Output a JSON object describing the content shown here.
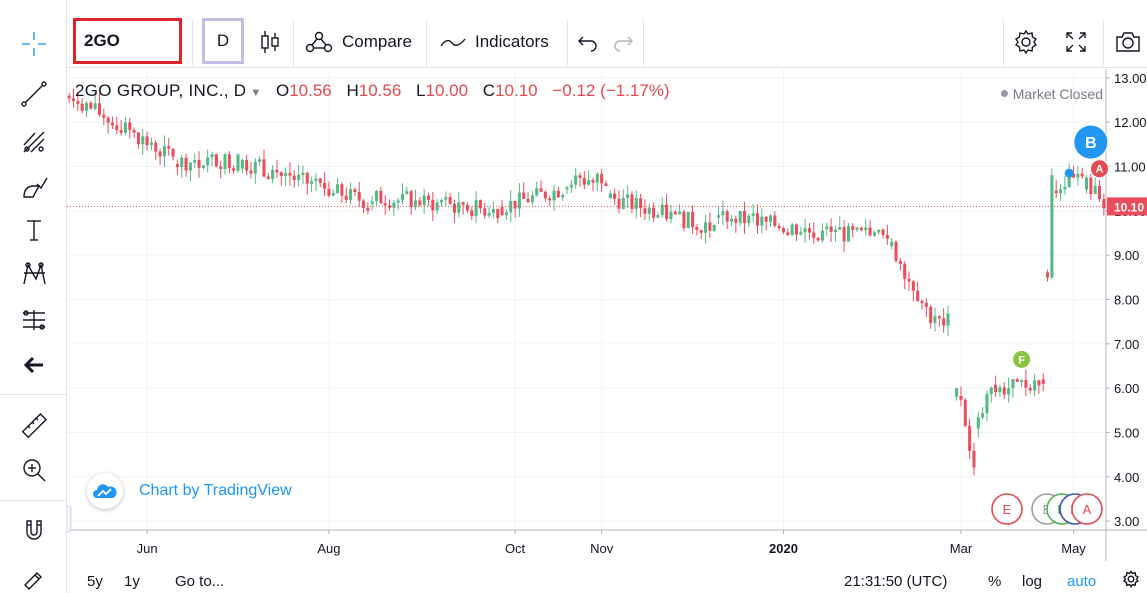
{
  "toolbar": {
    "symbol": "2GO",
    "interval": "D",
    "compare_label": "Compare",
    "indicators_label": "Indicators"
  },
  "legend": {
    "name": "2GO GROUP, INC., D",
    "o_label": "O",
    "o_value": "10.56",
    "h_label": "H",
    "h_value": "10.56",
    "l_label": "L",
    "l_value": "10.00",
    "c_label": "C",
    "c_value": "10.10",
    "change": "−0.12 (−1.17%)"
  },
  "market_status": "Market Closed",
  "watermark": "Chart by TradingView",
  "bottom": {
    "range_5y": "5y",
    "range_1y": "1y",
    "goto": "Go to...",
    "time": "21:31:50 (UTC)",
    "percent": "%",
    "log": "log",
    "auto": "auto"
  },
  "colors": {
    "up": "#53b987",
    "down": "#eb4d5c",
    "accent": "#2196f3",
    "symbol_border": "#d9242c",
    "interval_border": "#c3bde6"
  },
  "chart_data": {
    "type": "candlestick",
    "ylim": [
      2.8,
      13.2
    ],
    "y_ticks": [
      "13.00",
      "12.00",
      "11.00",
      "10.00",
      "9.00",
      "8.00",
      "7.00",
      "6.00",
      "5.00",
      "4.00",
      "3.00"
    ],
    "x_ticks": [
      {
        "label": "Jun",
        "index": 18,
        "bold": false
      },
      {
        "label": "Aug",
        "index": 60,
        "bold": false
      },
      {
        "label": "Oct",
        "index": 103,
        "bold": false
      },
      {
        "label": "Nov",
        "index": 123,
        "bold": false
      },
      {
        "label": "2020",
        "index": 165,
        "bold": true
      },
      {
        "label": "Mar",
        "index": 206,
        "bold": false
      },
      {
        "label": "May",
        "index": 232,
        "bold": false
      }
    ],
    "last_price": "10.10",
    "last_value": 10.1,
    "segments": [
      {
        "from": 0,
        "to": 25,
        "start": 12.6,
        "end": 11.2
      },
      {
        "from": 25,
        "to": 40,
        "start": 11.1,
        "end": 11.15
      },
      {
        "from": 40,
        "to": 70,
        "start": 11.1,
        "end": 10.2
      },
      {
        "from": 70,
        "to": 100,
        "start": 10.3,
        "end": 10.0
      },
      {
        "from": 100,
        "to": 115,
        "start": 10.1,
        "end": 10.5
      },
      {
        "from": 115,
        "to": 125,
        "start": 10.6,
        "end": 10.8
      },
      {
        "from": 125,
        "to": 150,
        "start": 10.3,
        "end": 9.6
      },
      {
        "from": 150,
        "to": 175,
        "start": 9.9,
        "end": 9.5
      },
      {
        "from": 175,
        "to": 190,
        "start": 9.5,
        "end": 9.4
      },
      {
        "from": 190,
        "to": 200,
        "start": 9.2,
        "end": 7.6
      },
      {
        "from": 200,
        "to": 204,
        "start": 7.5,
        "end": 7.5
      },
      {
        "from": 205,
        "to": 206,
        "start": 5.9,
        "end": 5.9
      },
      {
        "from": 206,
        "to": 210,
        "start": 5.8,
        "end": 4.1
      },
      {
        "from": 210,
        "to": 214,
        "start": 5.2,
        "end": 6.0
      },
      {
        "from": 214,
        "to": 225,
        "start": 5.95,
        "end": 6.15
      },
      {
        "from": 225,
        "to": 226,
        "start": 6.2,
        "end": 6.2
      },
      {
        "from": 226,
        "to": 228,
        "start": 8.6,
        "end": 10.9
      },
      {
        "from": 228,
        "to": 235,
        "start": 10.6,
        "end": 10.7
      },
      {
        "from": 235,
        "to": 240,
        "start": 10.6,
        "end": 10.2
      }
    ],
    "events": [
      {
        "letter": "F",
        "index": 220,
        "y": 6.65,
        "color": "#89c541",
        "text_color": "#ffffff"
      },
      {
        "letter": "B",
        "index": 236,
        "y": 11.55,
        "color": "#2196f3",
        "text_color": "#ffffff",
        "big": true
      },
      {
        "letter": "A",
        "index": 238,
        "y": 10.95,
        "color": "#e24a50",
        "text_color": "#ffffff"
      }
    ],
    "bottom_events": [
      {
        "letter": "E",
        "color": "#e24a50"
      },
      {
        "letter": "E",
        "color": "#9e9e9e"
      },
      {
        "letter": "D",
        "color": "#4caf50"
      },
      {
        "letter": "D",
        "color": "#3f51b5"
      },
      {
        "letter": "A",
        "color": "#e24a50"
      }
    ]
  }
}
